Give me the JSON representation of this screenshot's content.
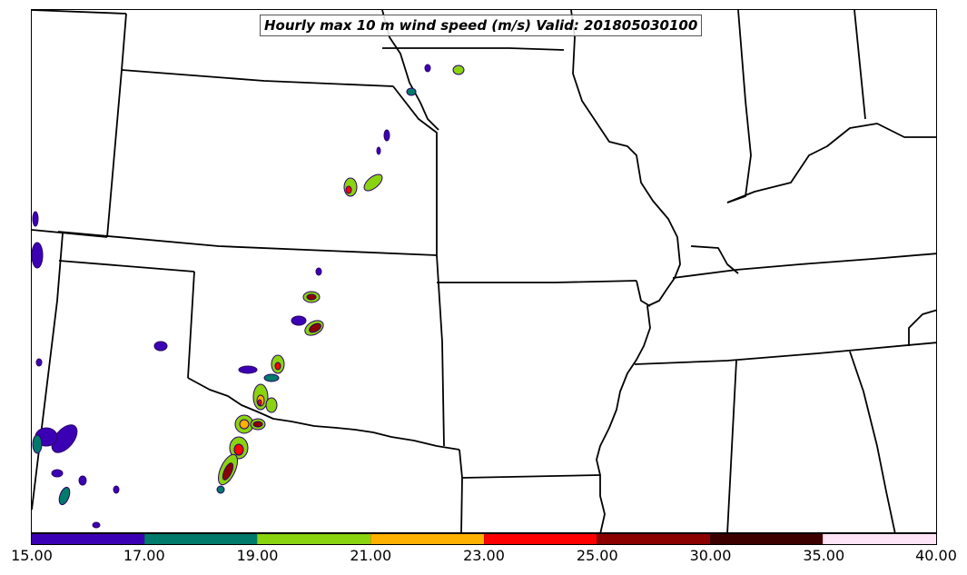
{
  "title": "Hourly max 10 m wind speed (m/s) Valid: 201805030100",
  "colorbar": {
    "ticks": [
      "15.00",
      "17.00",
      "19.00",
      "21.00",
      "23.00",
      "25.00",
      "30.00",
      "35.00",
      "40.00"
    ],
    "colors": [
      "#3c00b4",
      "#007a6a",
      "#8ad30f",
      "#ffb100",
      "#ff0000",
      "#8b0000",
      "#3d0000",
      "#ffe5f5"
    ]
  }
}
